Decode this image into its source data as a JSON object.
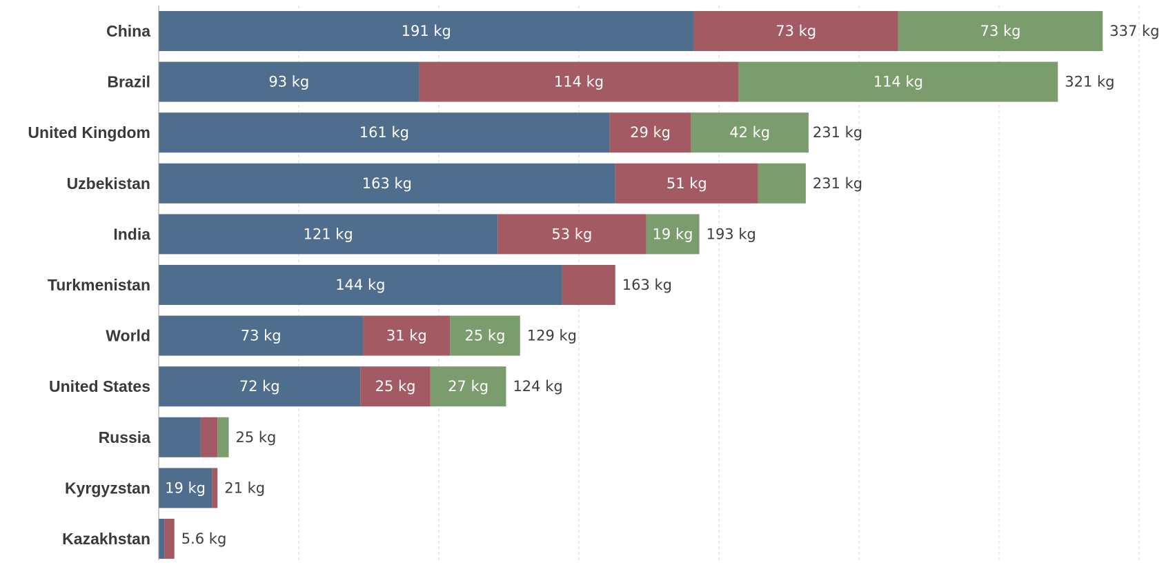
{
  "chart_data": {
    "type": "bar",
    "orientation": "horizontal",
    "stacked": true,
    "unit": "kg",
    "categories": [
      "China",
      "Brazil",
      "United Kingdom",
      "Uzbekistan",
      "India",
      "Turkmenistan",
      "World",
      "United States",
      "Russia",
      "Kyrgyzstan",
      "Kazakhstan"
    ],
    "series": [
      {
        "color": "#4f6d8d",
        "values": [
          191,
          93,
          161,
          163,
          121,
          144,
          73,
          72,
          15,
          19,
          2
        ],
        "labels": [
          "191 kg",
          "93 kg",
          "161 kg",
          "163 kg",
          "121 kg",
          "144 kg",
          "73 kg",
          "72 kg",
          "",
          "19 kg",
          ""
        ]
      },
      {
        "color": "#a35a63",
        "values": [
          73,
          114,
          29,
          51,
          53,
          19,
          31,
          25,
          6,
          2,
          3.6
        ],
        "labels": [
          "73 kg",
          "114 kg",
          "29 kg",
          "51 kg",
          "53 kg",
          "",
          "31 kg",
          "25 kg",
          "",
          "",
          ""
        ]
      },
      {
        "color": "#7b9c6c",
        "values": [
          73,
          114,
          42,
          17,
          19,
          0,
          25,
          27,
          4,
          0,
          0
        ],
        "labels": [
          "73 kg",
          "114 kg",
          "42 kg",
          "",
          "19 kg",
          "",
          "25 kg",
          "27 kg",
          "",
          "",
          ""
        ]
      }
    ],
    "totals": [
      337,
      321,
      231,
      231,
      193,
      163,
      129,
      124,
      25,
      21,
      5.6
    ],
    "total_labels": [
      "337 kg",
      "321 kg",
      "231 kg",
      "231 kg",
      "193 kg",
      "163 kg",
      "129 kg",
      "124 kg",
      "25 kg",
      "21 kg",
      "5.6 kg"
    ],
    "xlim": [
      0,
      400
    ],
    "grid": true,
    "legend": "none"
  }
}
